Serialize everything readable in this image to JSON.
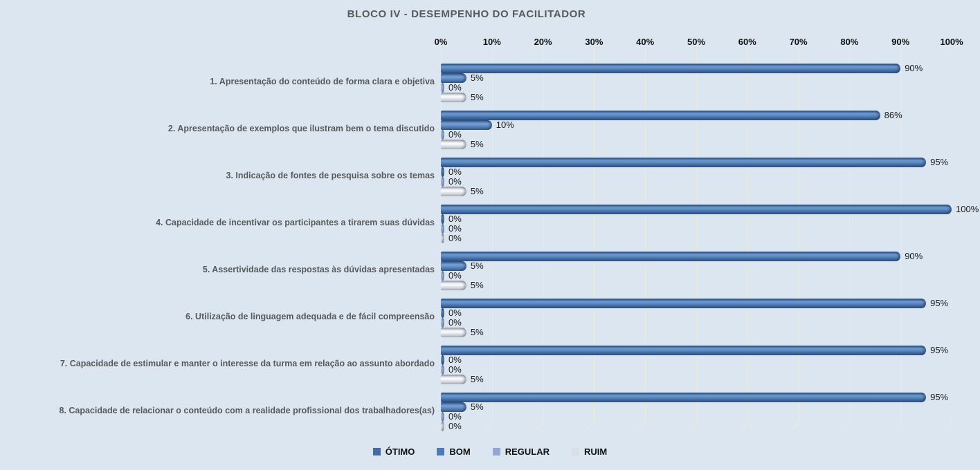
{
  "chart_data": {
    "type": "bar",
    "orientation": "horizontal",
    "title": "BLOCO IV - DESEMPENHO DO FACILITADOR",
    "x_axis": {
      "position": "top",
      "min": 0,
      "max": 100,
      "ticks": [
        "0%",
        "10%",
        "20%",
        "30%",
        "40%",
        "50%",
        "60%",
        "70%",
        "80%",
        "90%",
        "100%"
      ]
    },
    "categories": [
      "1. Apresentação do conteúdo de forma clara e objetiva",
      "2. Apresentação de exemplos que ilustram bem o tema discutido",
      "3. Indicação de fontes de pesquisa sobre os temas",
      "4. Capacidade de incentivar os participantes a tirarem suas dúvidas",
      "5. Assertividade das respostas às dúvidas apresentadas",
      "6. Utilização de linguagem adequada e de fácil compreensão",
      "7. Capacidade de estimular e manter o interesse da turma em relação ao assunto abordado",
      "8. Capacidade de relacionar o conteúdo com a realidade profissional dos trabalhadores(as)"
    ],
    "series": [
      {
        "name": "ÓTIMO",
        "color": "#466ba3",
        "values": [
          90,
          86,
          95,
          100,
          90,
          95,
          95,
          95
        ]
      },
      {
        "name": "BOM",
        "color": "#4f7ab8",
        "values": [
          5,
          10,
          0,
          0,
          5,
          0,
          0,
          5
        ]
      },
      {
        "name": "REGULAR",
        "color": "#93a7cf",
        "values": [
          0,
          0,
          0,
          0,
          0,
          0,
          0,
          0
        ]
      },
      {
        "name": "RUIM",
        "color": "#d9dee8",
        "values": [
          5,
          5,
          5,
          0,
          5,
          5,
          5,
          0
        ]
      }
    ],
    "data_labels": true,
    "data_label_format": "{value}%",
    "legend_position": "bottom",
    "grid": true,
    "style_3d": "cylinder"
  },
  "colors": {
    "background": "#dce6f1",
    "title_text": "#595959",
    "category_text": "#595959",
    "axis_text": "#111111",
    "gridline": "#e9ebe1"
  }
}
